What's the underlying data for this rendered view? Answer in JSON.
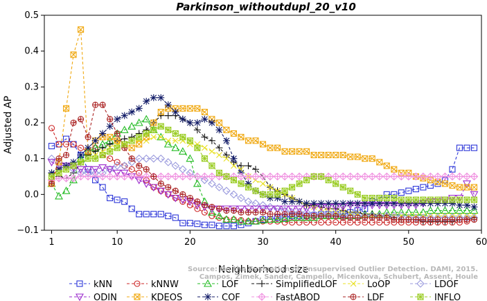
{
  "chart_data": {
    "type": "line",
    "title": "Parkinson_withoutdupl_20_v10",
    "xlabel": "Neighborhood size",
    "ylabel": "Adjusted AP",
    "xlim": [
      0,
      60
    ],
    "ylim": [
      -0.1,
      0.5
    ],
    "x_ticks": [
      1,
      10,
      20,
      30,
      40,
      50,
      60
    ],
    "y_ticks": [
      -0.1,
      0.0,
      0.1,
      0.2,
      0.3,
      0.4,
      0.5
    ],
    "x_tick_labels": [
      "1",
      "10",
      "20",
      "30",
      "40",
      "50",
      "60"
    ],
    "y_tick_labels": [
      "−0.1",
      "0.0",
      "0.1",
      "0.2",
      "0.3",
      "0.4",
      "0.5"
    ],
    "grid": false,
    "legend_position": "bottom",
    "credit_lines": [
      "Source: On the Evaluation of Unsupervised Outlier Detection. DAMI, 2015.",
      "Campos, Zimek, Sander, Campello, Micenkova, Schubert, Assent, Houle"
    ],
    "series": [
      {
        "name": "kNN",
        "color": "#2b35d8",
        "marker": "square",
        "values": [
          0.135,
          0.14,
          0.155,
          0.14,
          0.11,
          0.07,
          0.04,
          0.02,
          -0.01,
          -0.015,
          -0.02,
          -0.04,
          -0.055,
          -0.055,
          -0.055,
          -0.055,
          -0.06,
          -0.065,
          -0.08,
          -0.08,
          -0.082,
          -0.085,
          -0.085,
          -0.088,
          -0.088,
          -0.088,
          -0.085,
          -0.08,
          -0.075,
          -0.07,
          -0.07,
          -0.065,
          -0.065,
          -0.06,
          -0.06,
          -0.06,
          -0.058,
          -0.055,
          -0.055,
          -0.055,
          -0.055,
          -0.05,
          -0.045,
          -0.04,
          -0.02,
          -0.01,
          0.0,
          0.0,
          0.005,
          0.01,
          0.015,
          0.02,
          0.025,
          0.03,
          0.04,
          0.07,
          0.13,
          0.13,
          0.13
        ]
      },
      {
        "name": "kNNW",
        "color": "#cc2424",
        "marker": "circle",
        "values": [
          0.185,
          0.14,
          0.14,
          0.14,
          0.13,
          0.12,
          0.13,
          0.11,
          0.1,
          0.09,
          0.08,
          0.07,
          0.06,
          0.04,
          0.02,
          0.01,
          0.0,
          -0.01,
          -0.02,
          -0.03,
          -0.04,
          -0.05,
          -0.06,
          -0.065,
          -0.07,
          -0.07,
          -0.072,
          -0.075,
          -0.075,
          -0.075,
          -0.075,
          -0.075,
          -0.078,
          -0.078,
          -0.078,
          -0.078,
          -0.078,
          -0.078,
          -0.078,
          -0.078,
          -0.078,
          -0.078,
          -0.078,
          -0.078,
          -0.078,
          -0.078,
          -0.078,
          -0.078,
          -0.078,
          -0.078,
          -0.078,
          -0.078,
          -0.078,
          -0.078,
          -0.078,
          -0.078,
          -0.078,
          -0.075,
          -0.07
        ]
      },
      {
        "name": "LOF",
        "color": "#22bb22",
        "marker": "triangle-up",
        "values": [
          0.03,
          -0.005,
          0.01,
          0.04,
          0.1,
          0.12,
          0.13,
          0.14,
          0.15,
          0.17,
          0.18,
          0.19,
          0.2,
          0.21,
          0.18,
          0.16,
          0.14,
          0.13,
          0.12,
          0.1,
          0.03,
          -0.02,
          -0.05,
          -0.06,
          -0.07,
          -0.07,
          -0.075,
          -0.075,
          -0.075,
          -0.072,
          -0.07,
          -0.07,
          -0.068,
          -0.065,
          -0.065,
          -0.065,
          -0.065,
          -0.06,
          -0.06,
          -0.06,
          -0.06,
          -0.06,
          -0.06,
          -0.055,
          -0.055,
          -0.055,
          -0.05,
          -0.05,
          -0.05,
          -0.05,
          -0.05,
          -0.05,
          -0.045,
          -0.045,
          -0.045,
          -0.045,
          -0.045,
          -0.045,
          -0.045
        ]
      },
      {
        "name": "SimplifiedLOF",
        "color": "#111111",
        "marker": "plus",
        "values": [
          0.06,
          0.05,
          0.045,
          0.06,
          0.09,
          0.11,
          0.12,
          0.13,
          0.14,
          0.15,
          0.155,
          0.16,
          0.17,
          0.18,
          0.2,
          0.22,
          0.22,
          0.22,
          0.21,
          0.2,
          0.18,
          0.16,
          0.15,
          0.13,
          0.11,
          0.09,
          0.08,
          0.08,
          0.07,
          0.05,
          0.02,
          0.01,
          0.0,
          -0.01,
          -0.02,
          -0.03,
          -0.03,
          -0.035,
          -0.04,
          -0.04,
          -0.045,
          -0.05,
          -0.05,
          -0.055,
          -0.055,
          -0.06,
          -0.06,
          -0.065,
          -0.07,
          -0.07,
          -0.07,
          -0.075,
          -0.075,
          -0.075,
          -0.075,
          -0.075,
          -0.07,
          -0.07,
          -0.065
        ]
      },
      {
        "name": "LoOP",
        "color": "#e8e020",
        "marker": "cross",
        "values": [
          0.05,
          0.06,
          0.07,
          0.08,
          0.09,
          0.1,
          0.11,
          0.12,
          0.13,
          0.14,
          0.14,
          0.15,
          0.15,
          0.15,
          0.16,
          0.16,
          0.15,
          0.15,
          0.15,
          0.14,
          0.14,
          0.13,
          0.12,
          0.11,
          0.1,
          0.08,
          0.07,
          0.05,
          0.04,
          0.03,
          0.02,
          0.01,
          0.0,
          -0.01,
          -0.02,
          -0.03,
          -0.035,
          -0.04,
          -0.045,
          -0.05,
          -0.05,
          -0.055,
          -0.055,
          -0.06,
          -0.06,
          -0.06,
          -0.06,
          -0.06,
          -0.06,
          -0.06,
          -0.06,
          -0.06,
          -0.06,
          -0.06,
          -0.06,
          -0.06,
          -0.06,
          -0.06,
          -0.06
        ]
      },
      {
        "name": "LDOF",
        "color": "#9999dd",
        "marker": "diamond",
        "values": [
          0.1,
          0.09,
          0.08,
          0.07,
          0.06,
          0.06,
          0.06,
          0.06,
          0.07,
          0.08,
          0.08,
          0.09,
          0.1,
          0.1,
          0.1,
          0.1,
          0.09,
          0.08,
          0.07,
          0.06,
          0.05,
          0.04,
          0.03,
          0.02,
          0.01,
          0.0,
          -0.01,
          -0.02,
          -0.025,
          -0.03,
          -0.035,
          -0.04,
          -0.045,
          -0.05,
          -0.05,
          -0.05,
          -0.055,
          -0.055,
          -0.055,
          -0.055,
          -0.06,
          -0.06,
          -0.06,
          -0.06,
          -0.06,
          -0.06,
          -0.06,
          -0.06,
          -0.06,
          -0.065,
          -0.065,
          -0.065,
          -0.065,
          -0.065,
          -0.065,
          -0.065,
          -0.065,
          -0.065,
          -0.065
        ]
      },
      {
        "name": "ODIN",
        "color": "#9a28cc",
        "marker": "triangle-down",
        "values": [
          0.09,
          0.08,
          0.08,
          0.075,
          0.07,
          0.07,
          0.07,
          0.075,
          0.07,
          0.06,
          0.06,
          0.05,
          0.04,
          0.03,
          0.02,
          0.01,
          0.0,
          -0.01,
          -0.015,
          -0.02,
          -0.03,
          -0.035,
          -0.04,
          -0.04,
          -0.04,
          -0.04,
          -0.04,
          -0.04,
          -0.04,
          -0.04,
          -0.04,
          -0.04,
          -0.04,
          -0.04,
          -0.04,
          -0.04,
          -0.035,
          -0.035,
          -0.035,
          -0.035,
          -0.035,
          -0.03,
          -0.03,
          -0.03,
          -0.03,
          -0.03,
          -0.03,
          -0.03,
          -0.03,
          -0.03,
          -0.03,
          -0.025,
          -0.02,
          -0.02,
          -0.015,
          -0.01,
          -0.01,
          0.03,
          0.0
        ]
      },
      {
        "name": "KDEOS",
        "color": "#f0a810",
        "marker": "box-cross",
        "values": [
          0.03,
          0.09,
          0.24,
          0.39,
          0.46,
          0.12,
          0.15,
          0.16,
          0.16,
          0.15,
          0.14,
          0.13,
          0.14,
          0.16,
          0.2,
          0.23,
          0.24,
          0.24,
          0.24,
          0.24,
          0.24,
          0.23,
          0.21,
          0.2,
          0.18,
          0.17,
          0.16,
          0.15,
          0.15,
          0.14,
          0.13,
          0.13,
          0.12,
          0.12,
          0.12,
          0.12,
          0.11,
          0.11,
          0.11,
          0.11,
          0.11,
          0.105,
          0.105,
          0.1,
          0.1,
          0.09,
          0.08,
          0.07,
          0.06,
          0.06,
          0.05,
          0.045,
          0.04,
          0.035,
          0.03,
          0.025,
          0.02,
          0.02,
          0.02
        ]
      },
      {
        "name": "COF",
        "color": "#101a66",
        "marker": "asterisk",
        "values": [
          0.06,
          0.07,
          0.08,
          0.09,
          0.11,
          0.13,
          0.15,
          0.17,
          0.19,
          0.21,
          0.22,
          0.23,
          0.24,
          0.26,
          0.27,
          0.27,
          0.25,
          0.23,
          0.21,
          0.2,
          0.2,
          0.21,
          0.2,
          0.18,
          0.15,
          0.1,
          0.06,
          0.03,
          0.01,
          0.0,
          -0.01,
          -0.01,
          -0.02,
          -0.02,
          -0.02,
          -0.025,
          -0.025,
          -0.025,
          -0.025,
          -0.025,
          -0.025,
          -0.025,
          -0.025,
          -0.025,
          -0.025,
          -0.025,
          -0.025,
          -0.025,
          -0.025,
          -0.025,
          -0.025,
          -0.025,
          -0.025,
          -0.025,
          -0.025,
          -0.025,
          -0.03,
          -0.03,
          -0.035
        ]
      },
      {
        "name": "FastABOD",
        "color": "#f090e0",
        "marker": "diamond-dot",
        "values": [
          0.04,
          0.045,
          0.045,
          0.045,
          0.05,
          0.05,
          0.05,
          0.05,
          0.05,
          0.05,
          0.05,
          0.05,
          0.05,
          0.05,
          0.05,
          0.05,
          0.05,
          0.05,
          0.05,
          0.05,
          0.05,
          0.05,
          0.05,
          0.05,
          0.05,
          0.05,
          0.05,
          0.05,
          0.05,
          0.05,
          0.05,
          0.05,
          0.05,
          0.05,
          0.05,
          0.05,
          0.05,
          0.05,
          0.05,
          0.05,
          0.05,
          0.05,
          0.05,
          0.05,
          0.05,
          0.05,
          0.05,
          0.05,
          0.05,
          0.05,
          0.05,
          0.05,
          0.05,
          0.05,
          0.05,
          0.05,
          0.05,
          0.05,
          0.05
        ]
      },
      {
        "name": "LDF",
        "color": "#aa2222",
        "marker": "circle-plus",
        "values": [
          0.03,
          0.1,
          0.11,
          0.2,
          0.21,
          0.16,
          0.25,
          0.25,
          0.21,
          0.17,
          0.13,
          0.1,
          0.08,
          0.07,
          0.05,
          0.03,
          0.02,
          0.01,
          0.0,
          -0.01,
          -0.02,
          -0.03,
          -0.035,
          -0.04,
          -0.045,
          -0.045,
          -0.05,
          -0.05,
          -0.05,
          -0.05,
          -0.055,
          -0.055,
          -0.055,
          -0.055,
          -0.055,
          -0.06,
          -0.06,
          -0.06,
          -0.06,
          -0.06,
          -0.065,
          -0.065,
          -0.065,
          -0.065,
          -0.065,
          -0.065,
          -0.065,
          -0.07,
          -0.07,
          -0.07,
          -0.07,
          -0.07,
          -0.07,
          -0.07,
          -0.07,
          -0.07,
          -0.07,
          -0.07,
          -0.07
        ]
      },
      {
        "name": "INFLO",
        "color": "#99cc22",
        "marker": "box-star",
        "values": [
          0.05,
          0.06,
          0.07,
          0.08,
          0.09,
          0.1,
          0.1,
          0.11,
          0.12,
          0.13,
          0.14,
          0.15,
          0.16,
          0.17,
          0.18,
          0.19,
          0.18,
          0.17,
          0.16,
          0.15,
          0.13,
          0.1,
          0.08,
          0.06,
          0.05,
          0.04,
          0.03,
          0.02,
          0.01,
          0.0,
          0.0,
          0.0,
          0.01,
          0.02,
          0.03,
          0.04,
          0.05,
          0.05,
          0.04,
          0.03,
          0.02,
          0.01,
          0.0,
          -0.01,
          -0.01,
          -0.01,
          -0.01,
          -0.01,
          -0.015,
          -0.015,
          -0.015,
          -0.015,
          -0.015,
          -0.015,
          -0.015,
          -0.015,
          -0.015,
          -0.015,
          -0.015
        ]
      }
    ]
  }
}
